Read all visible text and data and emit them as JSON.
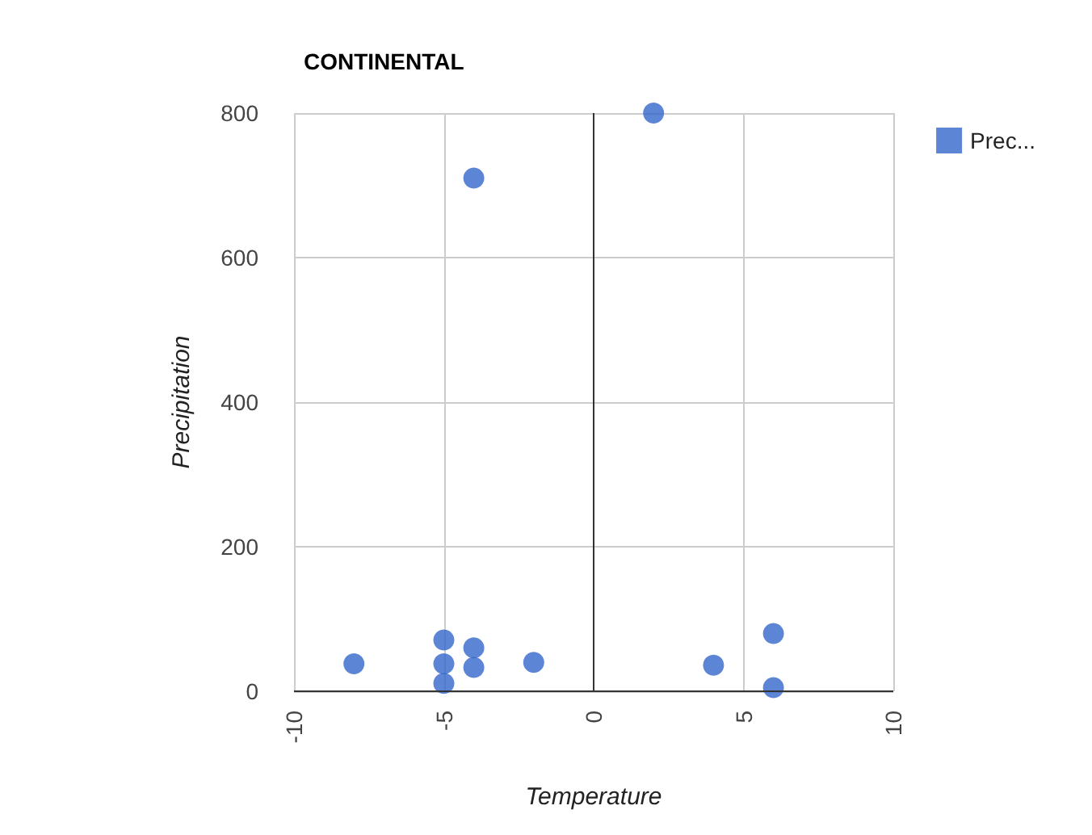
{
  "chart_data": {
    "type": "scatter",
    "title": "CONTINENTAL",
    "xlabel": "Temperature",
    "ylabel": "Precipitation",
    "x": [
      -8,
      -5,
      -5,
      -5,
      -4,
      -4,
      -4,
      -2,
      2,
      4,
      6,
      6
    ],
    "series": [
      {
        "name": "Prec...",
        "color": "#3366cc",
        "values": [
          38,
          71,
          38,
          11,
          60,
          33,
          710,
          40,
          800,
          36,
          80,
          5
        ]
      }
    ],
    "xlim": [
      -10,
      10
    ],
    "xticks": [
      -10,
      -5,
      0,
      5,
      10
    ],
    "ylim": [
      0,
      800
    ],
    "yticks": [
      0,
      200,
      400,
      600,
      800
    ],
    "grid": true,
    "legend": "top right",
    "marker": "circle"
  }
}
